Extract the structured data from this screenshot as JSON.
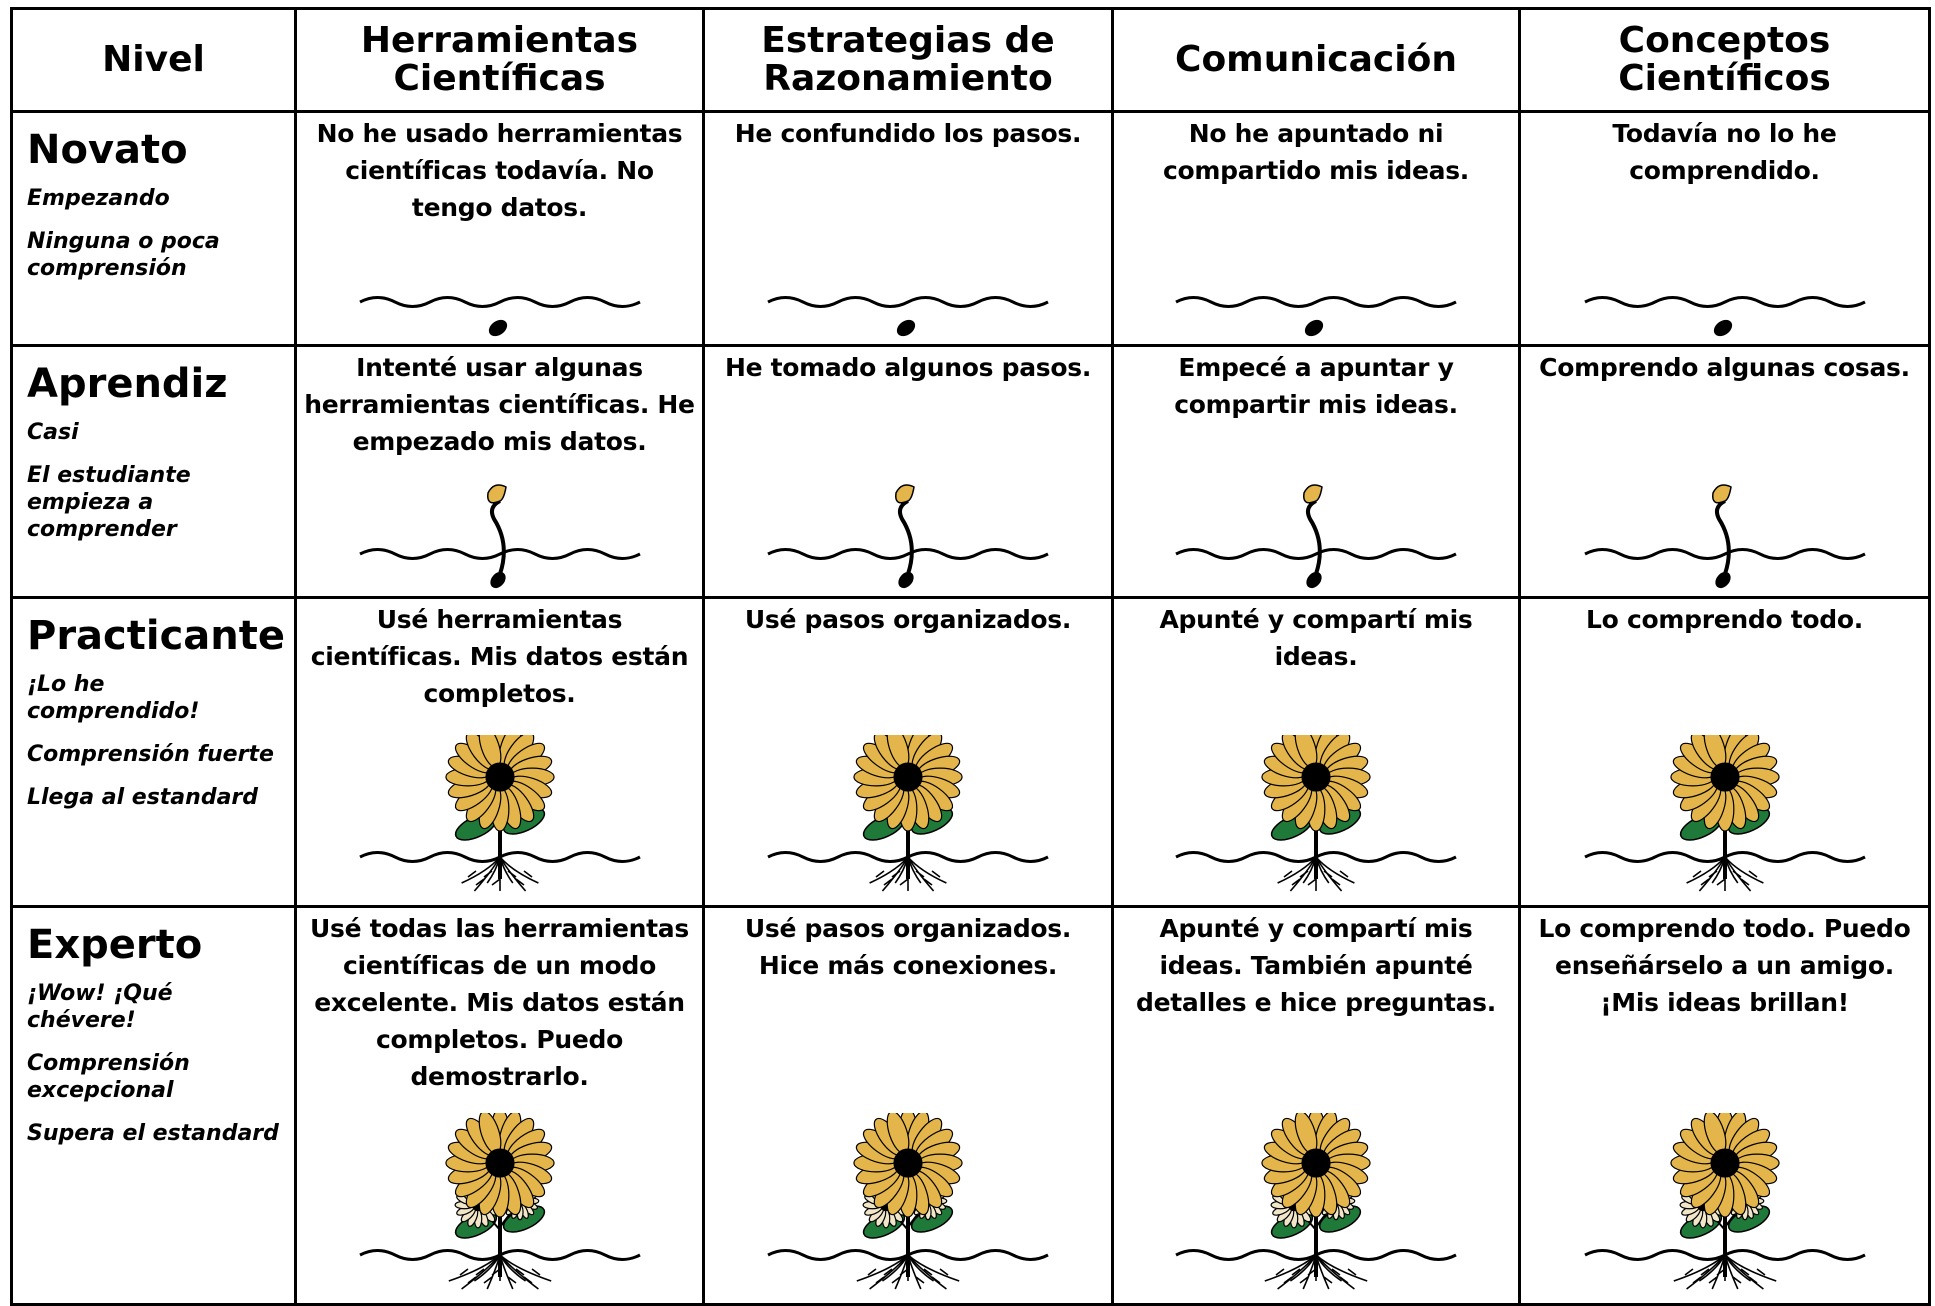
{
  "header": [
    "Nivel",
    "Herramientas Científicas",
    "Estrategias de Razonamiento",
    "Comunicación",
    "Conceptos Científicos"
  ],
  "rows": [
    {
      "level": "Novato",
      "descriptors": [
        "Empezando",
        "Ninguna o poca comprensión"
      ],
      "cells": [
        "No he usado herramientas científicas todavía. No tengo datos.",
        "He confundido los pasos.",
        "No he apuntado ni compartido mis ideas.",
        "Todavía no lo he comprendido."
      ]
    },
    {
      "level": "Aprendiz",
      "descriptors": [
        "Casi",
        "El estudiante empieza a comprender"
      ],
      "cells": [
        "Intenté usar algunas herramientas científicas. He empezado mis datos.",
        "He tomado algunos pasos.",
        "Empecé a apuntar y compartir mis ideas.",
        "Comprendo algunas cosas."
      ]
    },
    {
      "level": "Practicante",
      "descriptors": [
        "¡Lo he comprendido!",
        "Comprensión fuerte",
        "Llega al estandard"
      ],
      "cells": [
        "Usé herramientas científicas. Mis datos están completos.",
        "Usé pasos organizados.",
        "Apunté y compartí mis ideas.",
        "Lo comprendo todo."
      ]
    },
    {
      "level": "Experto",
      "descriptors": [
        "¡Wow! ¡Qué chévere!",
        "Comprensión excepcional",
        "Supera el estandard"
      ],
      "cells": [
        "Usé todas las herramientas científicas de un modo excelente. Mis datos están completos. Puedo demostrarlo.",
        "Usé pasos organizados. Hice más conexiones.",
        "Apunté y compartí mis ideas. También apunté detalles e hice preguntas.",
        "Lo comprendo todo. Puedo enseñárselo a un amigo. ¡Mis ideas brillan!"
      ]
    }
  ]
}
